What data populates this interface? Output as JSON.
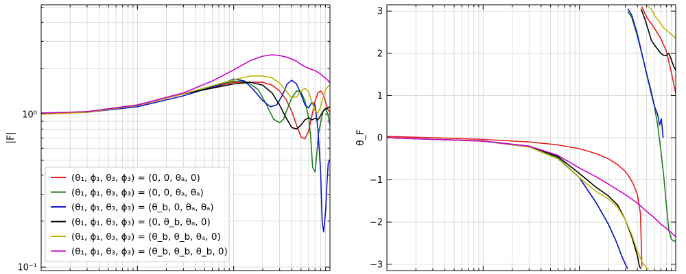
{
  "chart_data": [
    {
      "type": "line",
      "yscale": "log",
      "xscale": "log",
      "ylabel": "|F|",
      "xlabel": "",
      "grid": true,
      "legend_position": "lower-left",
      "ylim": [
        0.095,
        5.2
      ],
      "xlim": [
        0.01,
        10
      ],
      "yticks": [
        {
          "value": 0.1,
          "label": "10⁻¹"
        },
        {
          "value": 1,
          "label": "10⁰"
        }
      ],
      "series": [
        {
          "name": "(θ₁, ϕ₁, θ₃, ϕ₃) = (0, 0, θₐ, 0)",
          "color": "#e41a1c",
          "x": [
            0.01,
            0.03,
            0.1,
            0.3,
            1,
            2,
            2.5,
            3,
            3.5,
            4,
            4.5,
            5,
            5.5,
            6,
            6.5,
            7,
            7.5,
            8,
            8.5,
            9,
            9.5,
            10
          ],
          "y": [
            1.01,
            1.04,
            1.15,
            1.36,
            1.62,
            1.62,
            1.55,
            1.42,
            1.25,
            1.05,
            0.85,
            0.71,
            0.69,
            0.78,
            0.98,
            1.22,
            1.38,
            1.42,
            1.35,
            1.2,
            1.08,
            1.03
          ]
        },
        {
          "name": "(θ₁, ϕ₁, θ₃, ϕ₃) = (0, 0, θₐ, θₐ)",
          "color": "#1a7f1a",
          "x": [
            0.01,
            0.03,
            0.1,
            0.3,
            1,
            1.4,
            1.8,
            2.2,
            2.6,
            3,
            3.3,
            3.6,
            4,
            4.5,
            5,
            5.5,
            6,
            6.3,
            6.6,
            7,
            7.3,
            7.6,
            8,
            8.5,
            9,
            9.5,
            10
          ],
          "y": [
            1.01,
            1.04,
            1.15,
            1.36,
            1.65,
            1.62,
            1.45,
            1.15,
            0.93,
            0.88,
            0.93,
            1.08,
            1.28,
            1.42,
            1.4,
            1.22,
            0.95,
            0.72,
            0.45,
            0.42,
            0.55,
            0.75,
            0.88,
            1.05,
            1.1,
            1.0,
            0.85
          ]
        },
        {
          "name": "(θ₁, ϕ₁, θ₃, ϕ₃) = (θ_b, 0, θₐ, θₐ)",
          "color": "#0a14c8",
          "x": [
            0.01,
            0.03,
            0.1,
            0.3,
            0.7,
            1,
            1.3,
            1.6,
            2,
            2.4,
            2.8,
            3.2,
            3.6,
            4,
            4.5,
            5,
            5.5,
            6,
            6.5,
            7,
            7.5,
            8,
            8.3,
            8.6,
            9,
            9.3,
            9.6,
            10
          ],
          "y": [
            1.02,
            1.03,
            1.12,
            1.32,
            1.55,
            1.7,
            1.65,
            1.45,
            1.23,
            1.12,
            1.15,
            1.33,
            1.58,
            1.67,
            1.58,
            1.35,
            1.15,
            1.1,
            1.2,
            1.15,
            0.8,
            0.42,
            0.2,
            0.17,
            0.23,
            0.35,
            0.48,
            0.5
          ]
        },
        {
          "name": "(θ₁, ϕ₁, θ₃, ϕ₃) = (0, θ_b, θₐ, 0)",
          "color": "#000000",
          "x": [
            0.01,
            0.03,
            0.1,
            0.3,
            1,
            1.5,
            2,
            2.5,
            3,
            3.5,
            4,
            4.5,
            5,
            5.5,
            6,
            6.5,
            7,
            7.5,
            8,
            8.5,
            9,
            9.5,
            10
          ],
          "y": [
            1.01,
            1.04,
            1.15,
            1.36,
            1.58,
            1.62,
            1.55,
            1.38,
            1.15,
            0.95,
            0.82,
            0.8,
            0.85,
            0.92,
            0.95,
            0.92,
            0.94,
            0.92,
            0.98,
            1.05,
            1.08,
            1.1,
            1.12
          ]
        },
        {
          "name": "(θ₁, ϕ₁, θ₃, ϕ₃) = (θ_b, θ_b, θₐ, 0)",
          "color": "#bcb400",
          "x": [
            0.01,
            0.03,
            0.1,
            0.3,
            1,
            1.5,
            2,
            2.5,
            3,
            3.5,
            4,
            4.5,
            5,
            5.5,
            6,
            6.5,
            7,
            7.5,
            8,
            8.5,
            9,
            9.5,
            10
          ],
          "y": [
            1.0,
            1.03,
            1.14,
            1.36,
            1.68,
            1.78,
            1.78,
            1.73,
            1.6,
            1.42,
            1.28,
            1.3,
            1.42,
            1.48,
            1.4,
            1.2,
            1.05,
            1.02,
            1.12,
            1.3,
            1.45,
            1.52,
            1.55
          ]
        },
        {
          "name": "(θ₁, ϕ₁, θ₃, ϕ₃) = (θ_b, θ_b, θ_b, 0)",
          "color": "#c800c8",
          "x": [
            0.01,
            0.03,
            0.1,
            0.3,
            0.6,
            1,
            1.5,
            2,
            2.5,
            3,
            3.5,
            4,
            4.5,
            5,
            5.5,
            6,
            6.5,
            7,
            7.5,
            8,
            8.5,
            9,
            9.5,
            10
          ],
          "y": [
            1.02,
            1.04,
            1.15,
            1.38,
            1.65,
            1.95,
            2.25,
            2.4,
            2.45,
            2.42,
            2.37,
            2.3,
            2.22,
            2.12,
            2.05,
            2.0,
            1.96,
            1.93,
            1.88,
            1.83,
            1.77,
            1.72,
            1.67,
            1.6
          ]
        }
      ]
    },
    {
      "type": "line",
      "xscale": "log",
      "ylabel": "θ_F",
      "xlabel": "",
      "grid": true,
      "ylim": [
        -3.15,
        3.15
      ],
      "xlim": [
        0.01,
        10
      ],
      "yticks": [
        {
          "value": -3,
          "label": "−3"
        },
        {
          "value": -2,
          "label": "−2"
        },
        {
          "value": -1,
          "label": "−1"
        },
        {
          "value": 0,
          "label": "0"
        },
        {
          "value": 1,
          "label": "1"
        },
        {
          "value": 2,
          "label": "2"
        },
        {
          "value": 3,
          "label": "3"
        }
      ],
      "series": [
        {
          "name": "(θ₁, ϕ₁, θ₃, ϕ₃) = (0, 0, θₐ, 0)",
          "color": "#e41a1c",
          "segments": [
            {
              "x": [
                0.01,
                0.03,
                0.1,
                0.3,
                0.6,
                1,
                1.5,
                2,
                2.5,
                3,
                3.3,
                3.6,
                4,
                4.3,
                4.45
              ],
              "y": [
                0.03,
                0.0,
                -0.04,
                -0.1,
                -0.17,
                -0.26,
                -0.38,
                -0.5,
                -0.64,
                -0.8,
                -0.93,
                -1.08,
                -1.35,
                -1.8,
                -3.05
              ]
            },
            {
              "x": [
                4.47,
                5,
                6,
                7,
                8,
                9,
                10
              ],
              "y": [
                3.1,
                2.85,
                2.6,
                2.35,
                2.05,
                1.55,
                1.05
              ]
            }
          ]
        },
        {
          "name": "(θ₁, ϕ₁, θ₃, ϕ₃) = (0, 0, θₐ, θₐ)",
          "color": "#1a7f1a",
          "segments": [
            {
              "x": [
                0.01,
                0.1,
                0.3,
                0.6,
                1,
                1.5,
                2,
                2.4,
                2.8,
                3.15
              ],
              "y": [
                0.0,
                -0.08,
                -0.22,
                -0.48,
                -0.95,
                -1.55,
                -2.05,
                -2.45,
                -2.85,
                -3.1
              ]
            },
            {
              "x": [
                3.2,
                3.5,
                4,
                4.5,
                5,
                5.5,
                6,
                6.5,
                7,
                7.5,
                8,
                8.5,
                9,
                9.5,
                10
              ],
              "y": [
                2.98,
                2.85,
                2.4,
                1.95,
                1.5,
                1.15,
                0.75,
                0.3,
                -0.3,
                -0.9,
                -1.6,
                -2.2,
                -2.4,
                -2.45,
                -2.45
              ]
            }
          ]
        },
        {
          "name": "(θ₁, ϕ₁, θ₃, ϕ₃) = (θ_b, 0, θₐ, θₐ)",
          "color": "#0a14c8",
          "segments": [
            {
              "x": [
                0.01,
                0.1,
                0.3,
                0.6,
                1,
                1.5,
                2,
                2.4,
                2.8,
                3.15
              ],
              "y": [
                0.0,
                -0.08,
                -0.22,
                -0.5,
                -0.95,
                -1.55,
                -2.05,
                -2.45,
                -2.85,
                -3.1
              ]
            },
            {
              "x": [
                3.2,
                3.5,
                4,
                4.5,
                5,
                5.5,
                6,
                6.5,
                6.8,
                7.1,
                7.4
              ],
              "y": [
                3.05,
                2.9,
                2.45,
                1.95,
                1.5,
                1.1,
                0.75,
                0.55,
                0.3,
                0.45,
                0.0
              ]
            }
          ]
        },
        {
          "name": "(θ₁, ϕ₁, θ₃, ϕ₃) = (0, θ_b, θₐ, 0)",
          "color": "#000000",
          "segments": [
            {
              "x": [
                0.01,
                0.1,
                0.3,
                0.6,
                1,
                1.5,
                2,
                2.5,
                3,
                3.5,
                4,
                4.2,
                4.35
              ],
              "y": [
                0.0,
                -0.08,
                -0.2,
                -0.45,
                -0.85,
                -1.18,
                -1.38,
                -1.6,
                -1.95,
                -2.35,
                -2.8,
                -3.05,
                -3.1
              ]
            },
            {
              "x": [
                4.38,
                4.8,
                5.2,
                5.6,
                6,
                6.5,
                7,
                7.5,
                8,
                8.5,
                9,
                9.5,
                10
              ],
              "y": [
                3.05,
                2.8,
                2.55,
                2.3,
                2.2,
                2.1,
                2.0,
                1.95,
                1.95,
                2.0,
                1.85,
                1.7,
                1.6
              ]
            }
          ]
        },
        {
          "name": "(θ₁, ϕ₁, θ₃, ϕ₃) = (θ_b, θ_b, θₐ, 0)",
          "color": "#bcb400",
          "segments": [
            {
              "x": [
                0.01,
                0.1,
                0.3,
                0.6,
                1,
                1.5,
                2,
                2.5,
                3,
                3.5,
                4,
                4.5,
                5,
                5.2
              ],
              "y": [
                0.0,
                -0.08,
                -0.22,
                -0.5,
                -0.95,
                -1.28,
                -1.45,
                -1.65,
                -1.95,
                -2.3,
                -2.7,
                -2.95,
                -3.1,
                -3.1
              ]
            },
            {
              "x": [
                5.25,
                5.6,
                6,
                6.5,
                7,
                7.5,
                8,
                8.5,
                9,
                9.5,
                10
              ],
              "y": [
                3.1,
                3.05,
                2.9,
                2.8,
                2.7,
                2.6,
                2.55,
                2.5,
                2.45,
                2.4,
                2.35
              ]
            }
          ]
        },
        {
          "name": "(θ₁, ϕ₁, θ₃, ϕ₃) = (θ_b, θ_b, θ_b, 0)",
          "color": "#c800c8",
          "segments": [
            {
              "x": [
                0.01,
                0.1,
                0.3,
                0.6,
                1,
                1.5,
                2,
                3,
                4,
                5,
                6,
                7,
                8,
                9,
                10
              ],
              "y": [
                0.0,
                -0.08,
                -0.2,
                -0.42,
                -0.72,
                -0.93,
                -1.1,
                -1.35,
                -1.55,
                -1.75,
                -1.9,
                -2.05,
                -2.15,
                -2.25,
                -2.35
              ]
            }
          ]
        }
      ]
    }
  ],
  "legend": {
    "entries": [
      {
        "label": "(θ₁, ϕ₁, θ₃, ϕ₃) = (0, 0, θₐ, 0)",
        "color": "#e41a1c"
      },
      {
        "label": "(θ₁, ϕ₁, θ₃, ϕ₃) = (0, 0, θₐ, θₐ)",
        "color": "#1a7f1a"
      },
      {
        "label": "(θ₁, ϕ₁, θ₃, ϕ₃) = (θ_b, 0, θₐ, θₐ)",
        "color": "#0a14c8"
      },
      {
        "label": "(θ₁, ϕ₁, θ₃, ϕ₃) = (0, θ_b, θₐ, 0)",
        "color": "#000000"
      },
      {
        "label": "(θ₁, ϕ₁, θ₃, ϕ₃) = (θ_b, θ_b, θₐ, 0)",
        "color": "#bcb400"
      },
      {
        "label": "(θ₁, ϕ₁, θ₃, ϕ₃) = (θ_b, θ_b, θ_b, 0)",
        "color": "#c800c8"
      }
    ]
  }
}
